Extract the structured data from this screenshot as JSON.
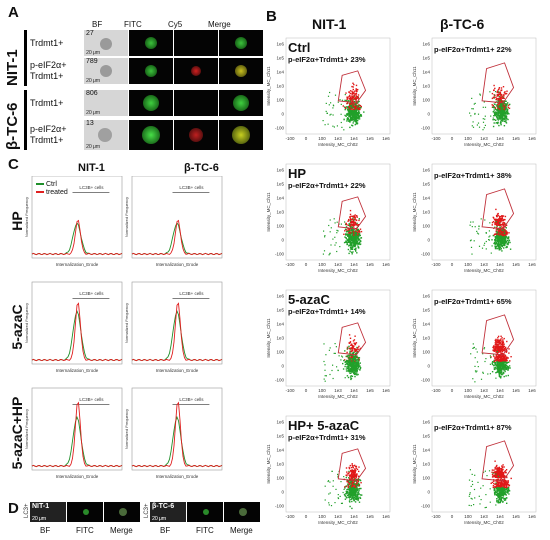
{
  "panel_labels": {
    "A": "A",
    "B": "B",
    "C": "C",
    "D": "D"
  },
  "panelA": {
    "col_headers": [
      "BF",
      "FITC",
      "Cy5",
      "Merge"
    ],
    "cell_lines": [
      "NIT-1",
      "β-TC-6"
    ],
    "rows": [
      {
        "label": "Trdmt1+",
        "count": "27",
        "scale": "20 μm"
      },
      {
        "label": "p-eIF2α+\nTrdmt1+",
        "count": "789",
        "scale": "20 μm"
      },
      {
        "label": "Trdmt1+",
        "count": "806",
        "scale": "20 μm"
      },
      {
        "label": "p-eIF2α+\nTrdmt1+",
        "count": "13",
        "scale": "20 μm"
      }
    ]
  },
  "panelB": {
    "col_headers": [
      "NIT-1",
      "β-TC-6"
    ],
    "x_axis_label": "Intensity_MC_Ch02",
    "y_axis_label": "Intensity_MC_Ch11",
    "x_ticks": [
      "-100",
      "0",
      "100",
      "1e3",
      "1e4",
      "1e5",
      "1e6"
    ],
    "y_ticks": [
      "1e6",
      "1e5",
      "1e4",
      "1e3",
      "100",
      "0",
      "-100"
    ],
    "rows": [
      {
        "condition": "Ctrl",
        "nit1": "p-eIF2α+Trdmt1+ 23%",
        "btc6": "p-eIF2α+Trdmt1+ 22%"
      },
      {
        "condition": "HP",
        "nit1": "p-eIF2α+Trdmt1+ 22%",
        "btc6": "p-eIF2α+Trdmt1+ 38%"
      },
      {
        "condition": "5-azaC",
        "nit1": "p-eIF2α+Trdmt1+ 14%",
        "btc6": "p-eIF2α+Trdmt1+ 65%"
      },
      {
        "condition": "HP+ 5-azaC",
        "nit1": "p-eIF2α+Trdmt1+ 31%",
        "btc6": "p-eIF2α+Trdmt1+ 87%"
      }
    ],
    "colors": {
      "green": "#22a02a",
      "red": "#e01818",
      "gate": "#c0303a"
    }
  },
  "panelC": {
    "col_headers": [
      "NIT-1",
      "β-TC-6"
    ],
    "legend": [
      "Ctrl",
      "treated"
    ],
    "gate_label": "LC3B+ cells",
    "x_axis_label": "Internalization_Erode",
    "y_axis_label": "Normalized Frequency",
    "x_ticks": [
      "-10",
      "0",
      "10",
      "20"
    ],
    "rows": [
      {
        "condition": "HP"
      },
      {
        "condition": "5-azaC"
      },
      {
        "condition": "5-azaC+HP"
      }
    ],
    "colors": {
      "ctrl": "#1f8f2a",
      "treated": "#e02020"
    }
  },
  "panelD": {
    "items": [
      {
        "line": "NIT-1",
        "side": "LC3+",
        "scale": "20 μm"
      },
      {
        "line": "β-TC-6",
        "side": "LC3+",
        "scale": "20 μm"
      }
    ],
    "col_headers": [
      "BF",
      "FITC",
      "Merge"
    ]
  }
}
